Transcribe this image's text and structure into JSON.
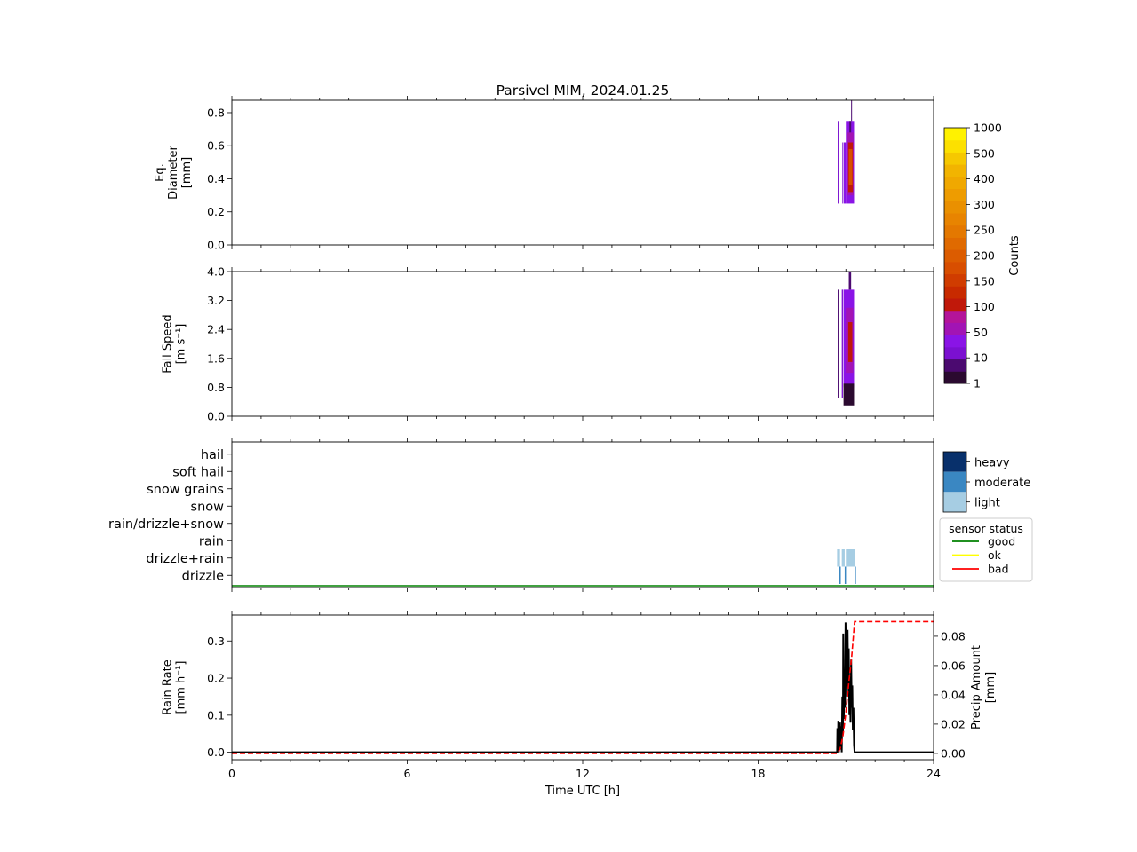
{
  "figure": {
    "title": "Parsivel MIM, 2024.01.25",
    "xlabel": "Time UTC [h]",
    "xticks": [
      "0",
      "6",
      "12",
      "18",
      "24"
    ],
    "xlim": [
      0,
      24
    ]
  },
  "colorbar": {
    "label": "Counts",
    "ticks": [
      "1",
      "10",
      "50",
      "100",
      "150",
      "200",
      "250",
      "300",
      "400",
      "500",
      "1000"
    ],
    "colors": [
      "#2b0a30",
      "#4b0a70",
      "#7b10d0",
      "#8a14e6",
      "#a214b4",
      "#b4149a",
      "#c0180a",
      "#c82a00",
      "#d03c00",
      "#d84e00",
      "#dc5c00",
      "#e06a00",
      "#e47800",
      "#e88400",
      "#ea9000",
      "#ee9c00",
      "#f0a800",
      "#f2b400",
      "#f6c800",
      "#fce000",
      "#fff200"
    ]
  },
  "intensity_legend": {
    "items": [
      {
        "label": "heavy",
        "color": "#08306b"
      },
      {
        "label": "moderate",
        "color": "#3a87c2"
      },
      {
        "label": "light",
        "color": "#a6cde3"
      }
    ]
  },
  "sensor_legend": {
    "title": "sensor status",
    "items": [
      {
        "label": "good",
        "color": "#008000"
      },
      {
        "label": "ok",
        "color": "#ffff00"
      },
      {
        "label": "bad",
        "color": "#ff0000"
      }
    ]
  },
  "chart_data": [
    {
      "type": "heatmap",
      "ylabel_lines": [
        "Eq.",
        "Diameter",
        "[mm]"
      ],
      "yticks": [
        "0.0",
        "0.2",
        "0.4",
        "0.6",
        "0.8"
      ],
      "ylim": [
        0,
        0.875
      ],
      "xlim": [
        0,
        24
      ],
      "cells": [
        {
          "t0": 20.72,
          "t1": 20.74,
          "y0": 0.25,
          "y1": 0.75,
          "color": "#7b10d0"
        },
        {
          "t0": 20.88,
          "t1": 20.91,
          "y0": 0.25,
          "y1": 0.62,
          "color": "#7b10d0"
        },
        {
          "t0": 20.93,
          "t1": 21.0,
          "y0": 0.25,
          "y1": 0.62,
          "color": "#8a14e6"
        },
        {
          "t0": 21.0,
          "t1": 21.28,
          "y0": 0.25,
          "y1": 0.75,
          "color": "#8a14e6"
        },
        {
          "t0": 21.05,
          "t1": 21.26,
          "y0": 0.3,
          "y1": 0.68,
          "color": "#a214b4"
        },
        {
          "t0": 21.08,
          "t1": 21.24,
          "y0": 0.32,
          "y1": 0.62,
          "color": "#c0180a"
        },
        {
          "t0": 21.1,
          "t1": 21.22,
          "y0": 0.36,
          "y1": 0.58,
          "color": "#d84e00"
        },
        {
          "t0": 21.18,
          "t1": 21.21,
          "y0": 0.75,
          "y1": 0.875,
          "color": "#4b0a70"
        },
        {
          "t0": 21.12,
          "t1": 21.18,
          "y0": 0.68,
          "y1": 0.75,
          "color": "#4b0a70"
        }
      ]
    },
    {
      "type": "heatmap",
      "ylabel_lines": [
        "Fall Speed",
        "[m s⁻¹]"
      ],
      "yticks": [
        "0.0",
        "0.8",
        "1.6",
        "2.4",
        "3.2",
        "4.0"
      ],
      "ylim": [
        0,
        4.0
      ],
      "xlim": [
        0,
        24
      ],
      "cells": [
        {
          "t0": 20.72,
          "t1": 20.74,
          "y0": 0.5,
          "y1": 3.5,
          "color": "#4b0a70"
        },
        {
          "t0": 20.86,
          "t1": 20.9,
          "y0": 0.5,
          "y1": 3.5,
          "color": "#7b10d0"
        },
        {
          "t0": 20.92,
          "t1": 21.28,
          "y0": 0.8,
          "y1": 3.5,
          "color": "#8a14e6"
        },
        {
          "t0": 21.0,
          "t1": 21.25,
          "y0": 1.2,
          "y1": 3.0,
          "color": "#a214b4"
        },
        {
          "t0": 21.08,
          "t1": 21.22,
          "y0": 1.5,
          "y1": 2.6,
          "color": "#c0180a"
        },
        {
          "t0": 20.92,
          "t1": 21.28,
          "y0": 0.3,
          "y1": 0.9,
          "color": "#2b0a30"
        },
        {
          "t0": 21.1,
          "t1": 21.18,
          "y0": 3.5,
          "y1": 4.0,
          "color": "#4b0a70"
        }
      ]
    },
    {
      "type": "heatmap",
      "categories": [
        "drizzle",
        "drizzle+rain",
        "rain",
        "rain/drizzle+snow",
        "snow",
        "snow grains",
        "soft hail",
        "hail"
      ],
      "xlim": [
        0,
        24
      ],
      "cells": [
        {
          "t0": 20.7,
          "t1": 20.8,
          "cat": 1,
          "color": "#a6cde3"
        },
        {
          "t0": 20.86,
          "t1": 20.96,
          "cat": 1,
          "color": "#a6cde3"
        },
        {
          "t0": 21.0,
          "t1": 21.3,
          "cat": 1,
          "color": "#a6cde3"
        },
        {
          "t0": 20.78,
          "t1": 20.8,
          "cat": 0,
          "color": "#3a87c2"
        },
        {
          "t0": 20.96,
          "t1": 20.98,
          "cat": 0,
          "color": "#3a87c2"
        },
        {
          "t0": 21.3,
          "t1": 21.32,
          "cat": 0,
          "color": "#3a87c2"
        }
      ],
      "sensor_status": {
        "t0": 0,
        "t1": 24,
        "status": "good"
      }
    },
    {
      "type": "line",
      "ylabel_lines": [
        "Rain Rate",
        "[mm h⁻¹]"
      ],
      "y2label_lines": [
        "Precip Amount",
        "[mm]"
      ],
      "yticks": [
        "0.0",
        "0.1",
        "0.2",
        "0.3"
      ],
      "y2ticks": [
        "0.00",
        "0.02",
        "0.04",
        "0.06",
        "0.08"
      ],
      "ylim": [
        -0.02,
        0.37
      ],
      "y2lim": [
        -0.0043,
        0.0945
      ],
      "series": [
        {
          "axis": "left",
          "color": "#000000",
          "style": "solid",
          "x": [
            0,
            20.7,
            20.71,
            20.73,
            20.74,
            20.76,
            20.77,
            20.79,
            20.8,
            20.82,
            20.84,
            20.86,
            20.88,
            20.9,
            20.91,
            20.93,
            20.95,
            20.97,
            20.99,
            21.01,
            21.02,
            21.04,
            21.06,
            21.08,
            21.1,
            21.12,
            21.14,
            21.16,
            21.18,
            21.2,
            21.22,
            21.24,
            21.26,
            21.28,
            21.3,
            24
          ],
          "values": [
            0,
            0,
            0.065,
            0.02,
            0.085,
            0,
            0.05,
            0.02,
            0.08,
            0.01,
            0.07,
            0,
            0.15,
            0.05,
            0.32,
            0.09,
            0.2,
            0.12,
            0.35,
            0.22,
            0.3,
            0.15,
            0.33,
            0.18,
            0.28,
            0.1,
            0.2,
            0.08,
            0.25,
            0.12,
            0.18,
            0.06,
            0.12,
            0.02,
            0,
            0
          ]
        },
        {
          "axis": "right",
          "color": "#ff0000",
          "style": "dashed",
          "x": [
            0,
            20.7,
            20.8,
            20.9,
            21.0,
            21.1,
            21.2,
            21.3,
            24
          ],
          "values": [
            0,
            0,
            0.003,
            0.012,
            0.028,
            0.048,
            0.066,
            0.09,
            0.09
          ]
        }
      ]
    }
  ]
}
